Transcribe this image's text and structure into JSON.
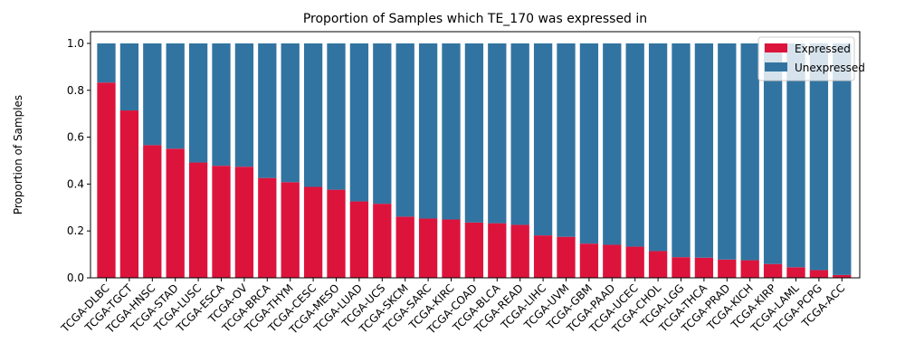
{
  "chart_data": {
    "type": "bar",
    "stacked": true,
    "title": "Proportion of Samples which TE_170 was expressed in",
    "xlabel": "",
    "ylabel": "Proportion of Samples",
    "ylim": [
      0,
      1.05
    ],
    "yticks": [
      "0.0",
      "0.2",
      "0.4",
      "0.6",
      "0.8",
      "1.0"
    ],
    "grid": false,
    "legend_position": "top-right",
    "categories": [
      "TCGA-DLBC",
      "TCGA-TGCT",
      "TCGA-HNSC",
      "TCGA-STAD",
      "TCGA-LUSC",
      "TCGA-ESCA",
      "TCGA-OV",
      "TCGA-BRCA",
      "TCGA-THYM",
      "TCGA-CESC",
      "TCGA-MESO",
      "TCGA-LUAD",
      "TCGA-UCS",
      "TCGA-SKCM",
      "TCGA-SARC",
      "TCGA-KIRC",
      "TCGA-COAD",
      "TCGA-BLCA",
      "TCGA-READ",
      "TCGA-LIHC",
      "TCGA-UVM",
      "TCGA-GBM",
      "TCGA-PAAD",
      "TCGA-UCEC",
      "TCGA-CHOL",
      "TCGA-LGG",
      "TCGA-THCA",
      "TCGA-PRAD",
      "TCGA-KICH",
      "TCGA-KIRP",
      "TCGA-LAML",
      "TCGA-PCPG",
      "TCGA-ACC"
    ],
    "series": [
      {
        "name": "Expressed",
        "color": "#dc143c",
        "values": [
          0.833,
          0.714,
          0.566,
          0.551,
          0.492,
          0.478,
          0.474,
          0.426,
          0.408,
          0.388,
          0.376,
          0.326,
          0.316,
          0.261,
          0.253,
          0.249,
          0.236,
          0.233,
          0.226,
          0.181,
          0.175,
          0.146,
          0.141,
          0.133,
          0.114,
          0.088,
          0.086,
          0.078,
          0.075,
          0.059,
          0.045,
          0.033,
          0.012
        ]
      },
      {
        "name": "Unexpressed",
        "color": "#3274a1",
        "values": [
          0.167,
          0.286,
          0.434,
          0.449,
          0.508,
          0.522,
          0.526,
          0.574,
          0.592,
          0.612,
          0.624,
          0.674,
          0.684,
          0.739,
          0.747,
          0.751,
          0.764,
          0.767,
          0.774,
          0.819,
          0.825,
          0.854,
          0.859,
          0.867,
          0.886,
          0.912,
          0.914,
          0.922,
          0.925,
          0.941,
          0.955,
          0.967,
          0.988
        ]
      }
    ]
  }
}
